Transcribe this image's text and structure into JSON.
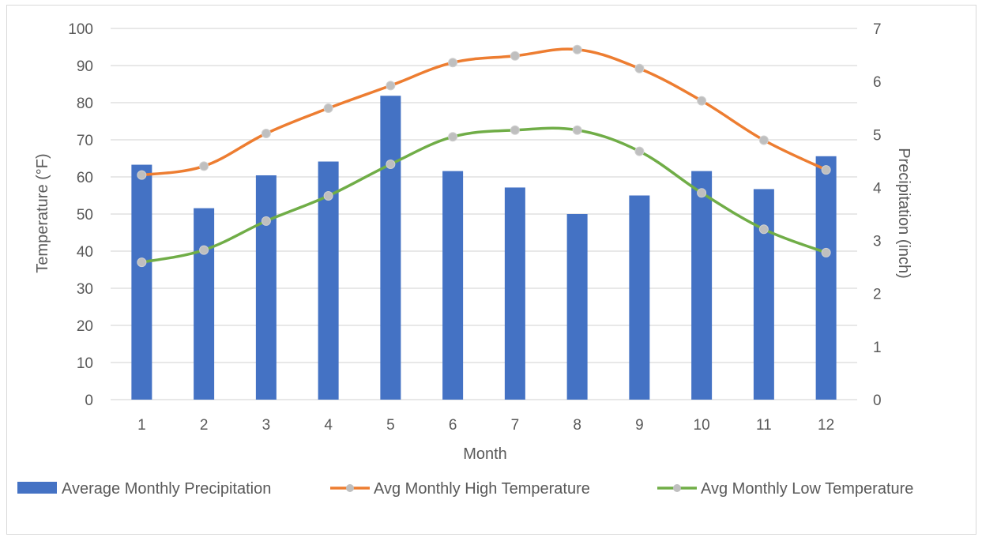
{
  "chart_data": {
    "type": "bar",
    "title": "",
    "xlabel": "Month",
    "ylabel_left": "Temperature (°F)",
    "ylabel_right": "Precipitation (inch)",
    "categories": [
      "1",
      "2",
      "3",
      "4",
      "5",
      "6",
      "7",
      "8",
      "9",
      "10",
      "11",
      "12"
    ],
    "ylim_left": [
      0,
      100
    ],
    "yticks_left": [
      "0",
      "10",
      "20",
      "30",
      "40",
      "50",
      "60",
      "70",
      "80",
      "90",
      "100"
    ],
    "ylim_right": [
      0,
      7
    ],
    "yticks_right": [
      "0",
      "1",
      "2",
      "3",
      "4",
      "5",
      "6",
      "7"
    ],
    "grid": true,
    "legend_position": "bottom",
    "series": [
      {
        "name": "Average Monthly Precipitation",
        "kind": "bar",
        "axis": "right",
        "color": "#4472c4",
        "values": [
          4.43,
          3.61,
          4.23,
          4.49,
          5.73,
          4.31,
          4.0,
          3.5,
          3.85,
          4.31,
          3.97,
          4.59
        ]
      },
      {
        "name": "Avg Monthly High Temperature",
        "kind": "line",
        "axis": "left",
        "color": "#ed7d31",
        "marker_color": "#bfbfbf",
        "values": [
          60.5,
          62.9,
          71.7,
          78.5,
          84.6,
          90.8,
          92.6,
          94.3,
          89.2,
          80.5,
          69.9,
          61.9
        ]
      },
      {
        "name": "Avg Monthly Low Temperature",
        "kind": "line",
        "axis": "left",
        "color": "#70ad47",
        "marker_color": "#bfbfbf",
        "values": [
          37.0,
          40.3,
          48.1,
          54.9,
          63.4,
          70.8,
          72.6,
          72.6,
          66.9,
          55.7,
          45.9,
          39.6
        ]
      }
    ]
  }
}
